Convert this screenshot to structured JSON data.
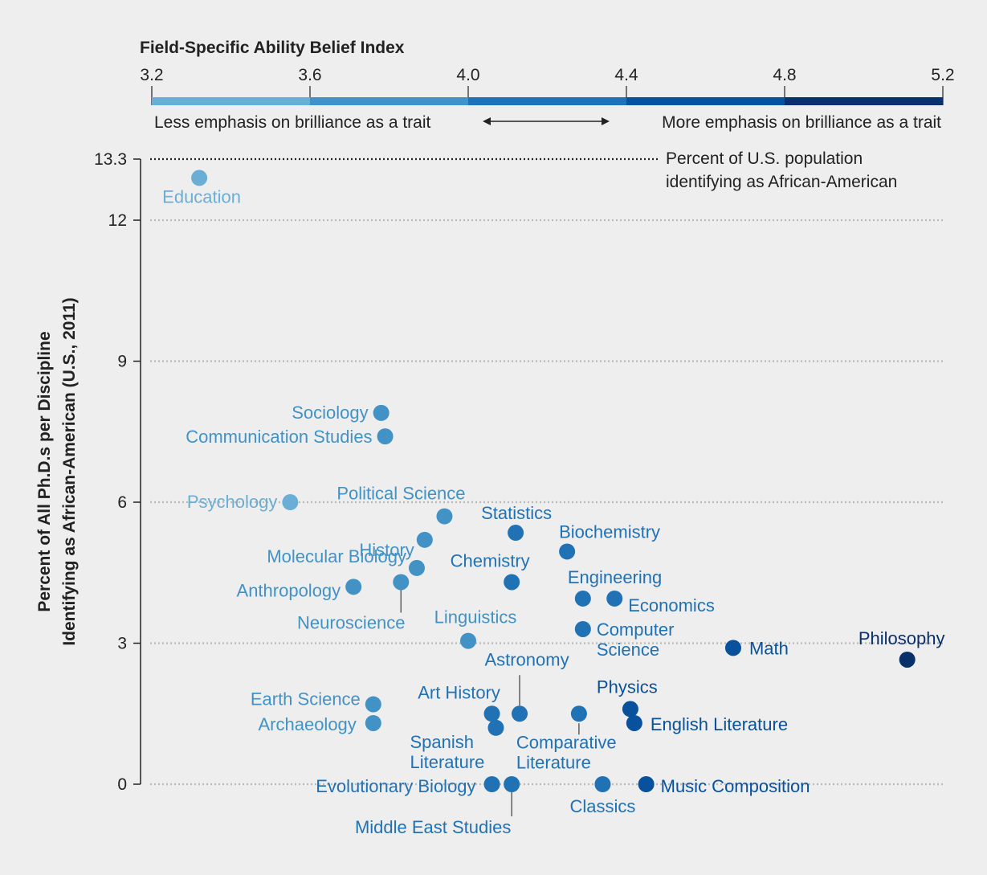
{
  "chart_data": {
    "type": "scatter",
    "title": "Field-Specific Ability Belief Index",
    "ylabel_line1": "Percent of All Ph.D.s per Discipline",
    "ylabel_line2": "Identifying as African-American (U.S., 2011)",
    "scale_ticks": [
      "3.2",
      "3.6",
      "4.0",
      "4.4",
      "4.8",
      "5.2"
    ],
    "scale_range": [
      3.2,
      5.2
    ],
    "scale_colors": [
      "#6aaed6",
      "#4292c6",
      "#2171b5",
      "#08519c",
      "#08306b"
    ],
    "scale_left_label": "Less emphasis on brilliance as a trait",
    "scale_right_label": "More emphasis on brilliance as a trait",
    "ylim": [
      0,
      13.3
    ],
    "y_ticks": [
      "0",
      "3",
      "6",
      "9",
      "12",
      "13.3"
    ],
    "reference_line": {
      "value": 13.3,
      "label_line1": "Percent of U.S. population",
      "label_line2": "identifying as African-American"
    },
    "points": [
      {
        "name": "Education",
        "x": 3.32,
        "y": 12.9
      },
      {
        "name": "Sociology",
        "x": 3.78,
        "y": 7.9
      },
      {
        "name": "Communication Studies",
        "x": 3.79,
        "y": 7.4
      },
      {
        "name": "Psychology",
        "x": 3.55,
        "y": 6.0
      },
      {
        "name": "Political Science",
        "x": 3.94,
        "y": 5.7
      },
      {
        "name": "History",
        "x": 3.89,
        "y": 5.2
      },
      {
        "name": "Molecular Biology",
        "x": 3.87,
        "y": 4.6
      },
      {
        "name": "Neuroscience",
        "x": 3.83,
        "y": 4.3
      },
      {
        "name": "Anthropology",
        "x": 3.71,
        "y": 4.2
      },
      {
        "name": "Statistics",
        "x": 4.12,
        "y": 5.35
      },
      {
        "name": "Chemistry",
        "x": 4.11,
        "y": 4.3
      },
      {
        "name": "Biochemistry",
        "x": 4.25,
        "y": 4.95
      },
      {
        "name": "Engineering",
        "x": 4.29,
        "y": 3.95
      },
      {
        "name": "Economics",
        "x": 4.37,
        "y": 3.95
      },
      {
        "name": "Computer Science",
        "x": 4.29,
        "y": 3.3
      },
      {
        "name": "Linguistics",
        "x": 4.0,
        "y": 3.05
      },
      {
        "name": "Math",
        "x": 4.67,
        "y": 2.9
      },
      {
        "name": "Philosophy",
        "x": 5.11,
        "y": 2.65
      },
      {
        "name": "Earth Science",
        "x": 3.76,
        "y": 1.7
      },
      {
        "name": "Archaeology",
        "x": 3.76,
        "y": 1.3
      },
      {
        "name": "Art History",
        "x": 4.06,
        "y": 1.5
      },
      {
        "name": "Astronomy",
        "x": 4.13,
        "y": 1.5
      },
      {
        "name": "Spanish Literature",
        "x": 4.07,
        "y": 1.2
      },
      {
        "name": "Comparative Literature",
        "x": 4.28,
        "y": 1.5
      },
      {
        "name": "Physics",
        "x": 4.41,
        "y": 1.6
      },
      {
        "name": "English Literature",
        "x": 4.42,
        "y": 1.3
      },
      {
        "name": "Evolutionary Biology",
        "x": 4.06,
        "y": 0.0
      },
      {
        "name": "Middle East Studies",
        "x": 4.11,
        "y": 0.0
      },
      {
        "name": "Classics",
        "x": 4.34,
        "y": 0.0
      },
      {
        "name": "Music Composition",
        "x": 4.45,
        "y": 0.0
      }
    ]
  }
}
